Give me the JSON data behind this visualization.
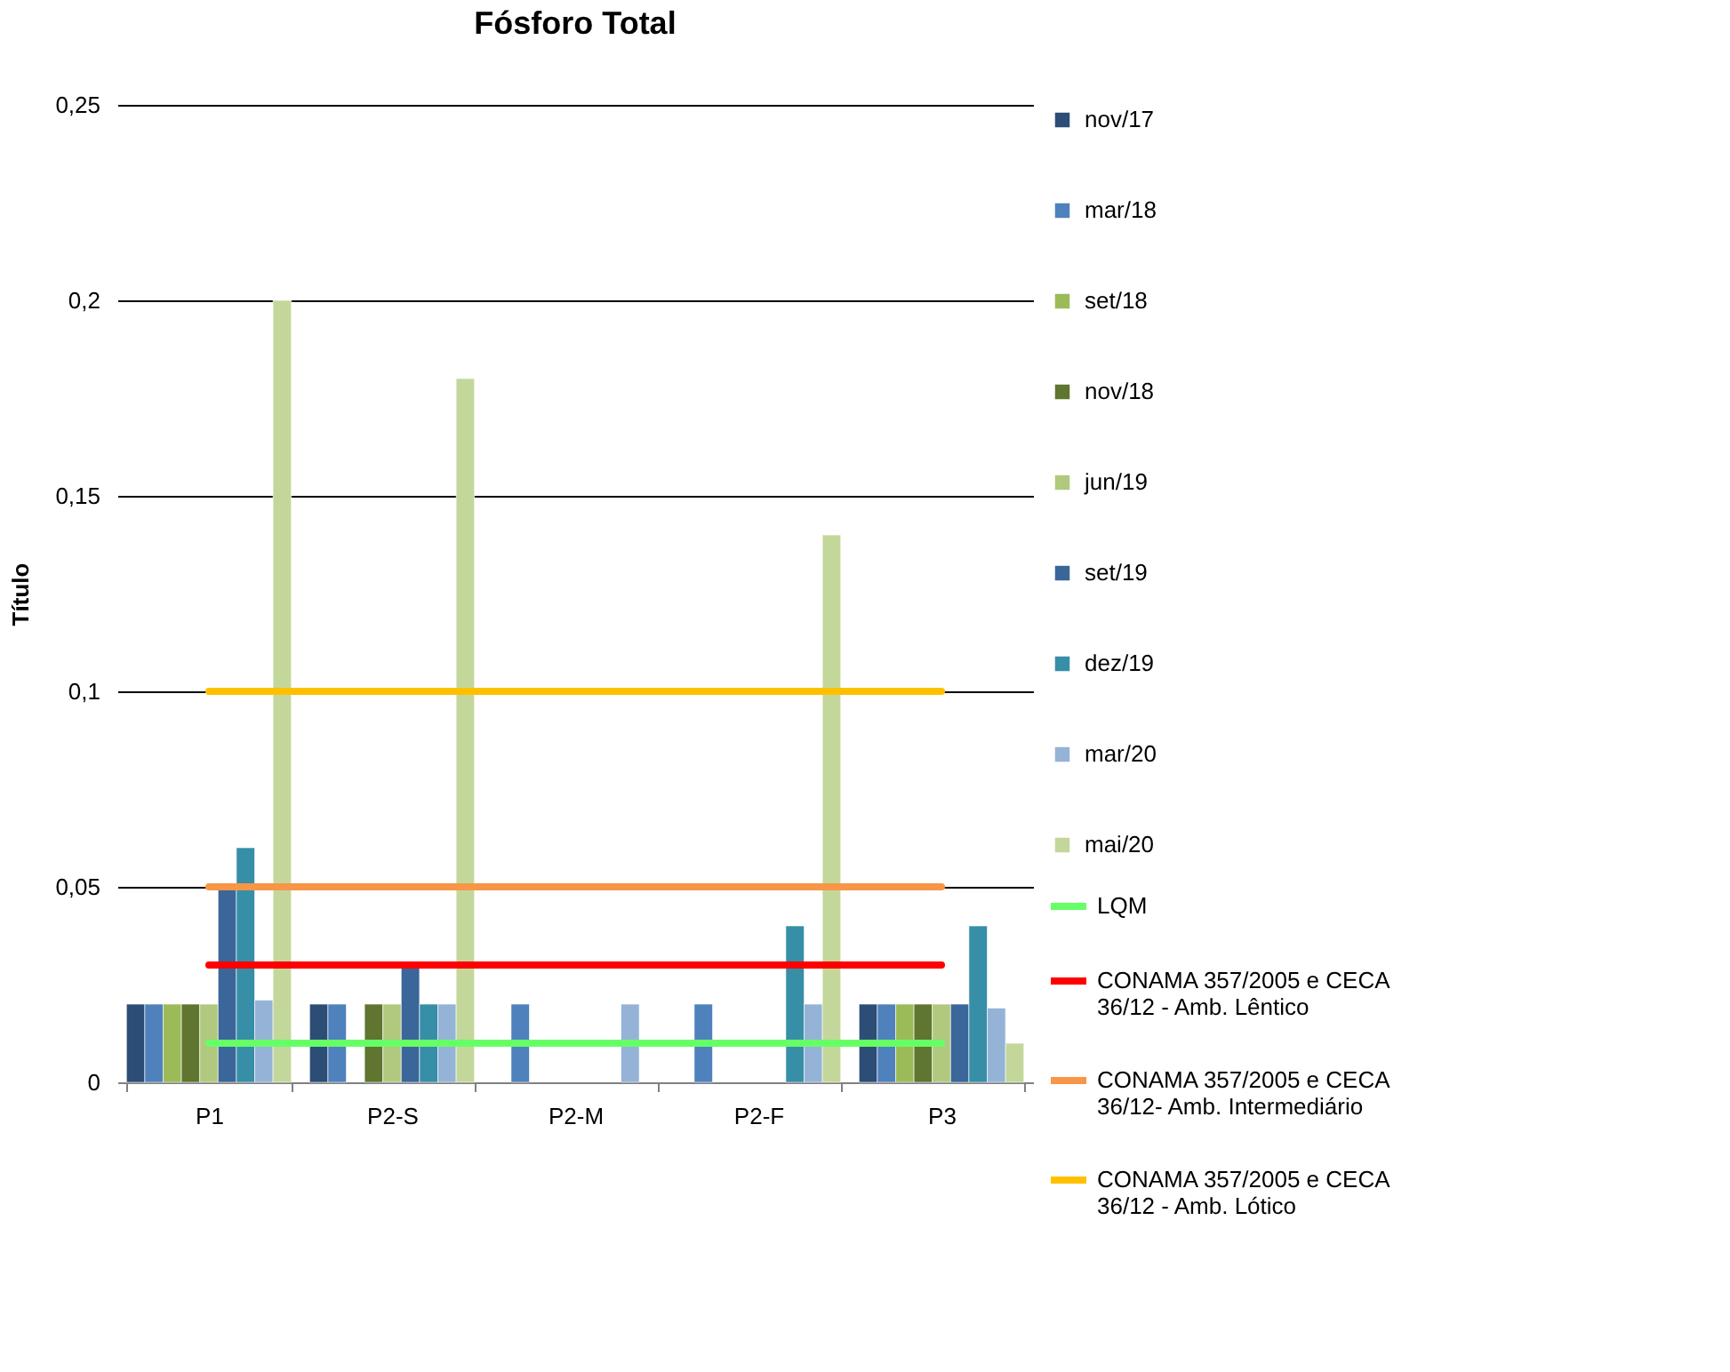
{
  "chart_data": {
    "type": "bar",
    "title": "Fósforo Total",
    "ylabel": "Título",
    "categories": [
      "P1",
      "P2-S",
      "P2-M",
      "P2-F",
      "P3"
    ],
    "series": [
      {
        "name": "nov/17",
        "color": "#2c4d75",
        "values": [
          0.02,
          0.02,
          null,
          null,
          0.02
        ]
      },
      {
        "name": "mar/18",
        "color": "#4f81bd",
        "values": [
          0.02,
          0.02,
          0.02,
          0.02,
          0.02
        ]
      },
      {
        "name": "set/18",
        "color": "#9bbb59",
        "values": [
          0.02,
          null,
          null,
          null,
          0.02
        ]
      },
      {
        "name": "nov/18",
        "color": "#5f7530",
        "values": [
          0.02,
          0.02,
          null,
          null,
          0.02
        ]
      },
      {
        "name": "jun/19",
        "color": "#b0c97e",
        "values": [
          0.02,
          0.02,
          null,
          null,
          0.02
        ]
      },
      {
        "name": "set/19",
        "color": "#3a6699",
        "values": [
          0.05,
          0.03,
          null,
          null,
          0.02
        ]
      },
      {
        "name": "dez/19",
        "color": "#378ea7",
        "values": [
          0.06,
          0.02,
          null,
          0.04,
          0.04
        ]
      },
      {
        "name": "mar/20",
        "color": "#95b3d7",
        "values": [
          0.021,
          0.02,
          0.02,
          0.02,
          0.019
        ]
      },
      {
        "name": "mai/20",
        "color": "#c4d79b",
        "values": [
          0.2,
          0.18,
          null,
          0.14,
          0.01
        ]
      },
      {
        "name": "LQM",
        "type": "line",
        "color": "#66ff66",
        "values": [
          0.01,
          0.01,
          0.01,
          0.01,
          0.01
        ]
      },
      {
        "name": "CONAMA 357/2005 e CECA 36/12 - Amb. Lêntico",
        "type": "line",
        "color": "#ff0000",
        "values": [
          0.03,
          0.03,
          0.03,
          0.03,
          0.03
        ]
      },
      {
        "name": "CONAMA 357/2005 e CECA 36/12- Amb. Intermediário",
        "type": "line",
        "color": "#f79646",
        "values": [
          0.05,
          0.05,
          0.05,
          0.05,
          0.05
        ]
      },
      {
        "name": "CONAMA 357/2005 e CECA 36/12 - Amb. Lótico",
        "type": "line",
        "color": "#ffc000",
        "values": [
          0.1,
          0.1,
          0.1,
          0.1,
          0.1
        ]
      }
    ],
    "ylim": [
      0,
      0.25
    ],
    "yticks": [
      0,
      {
        "value": 0.05,
        "label": "0,05"
      },
      {
        "value": 0.1,
        "label": "0,1"
      },
      {
        "value": 0.15,
        "label": "0,15"
      },
      {
        "value": 0.2,
        "label": "0,2"
      },
      {
        "value": 0.25,
        "label": "0,25"
      }
    ],
    "grid": "y",
    "legend": "right",
    "marker": "none",
    "line_style": "solid"
  }
}
